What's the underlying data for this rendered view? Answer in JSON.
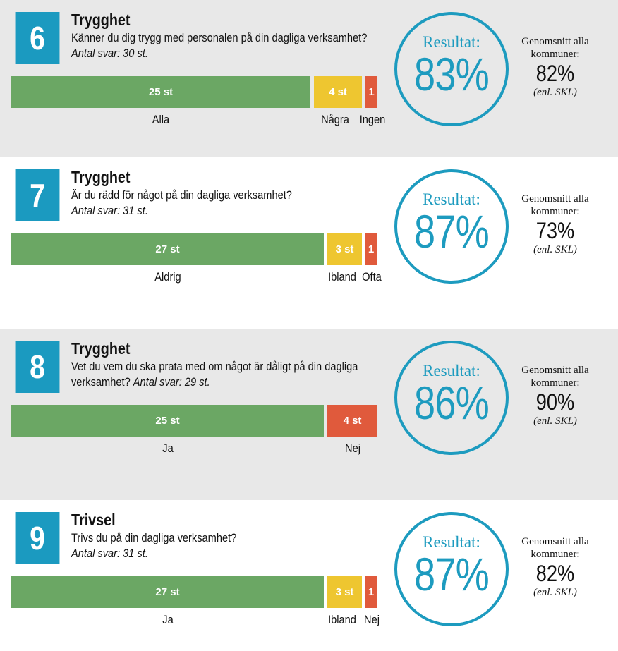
{
  "colors": {
    "panel_gray": "#e8e8e8",
    "panel_white": "#ffffff",
    "number_box": "#1b9ac0",
    "result_blue": "#1d9bbf",
    "green": "#6ba764",
    "yellow": "#eec630",
    "red": "#e05a3c"
  },
  "chart_data": [
    {
      "type": "bar",
      "number": "6",
      "title": "Trygghet",
      "question": "Känner du dig trygg med personalen på din dagliga verksamhet?",
      "count_text": "Antal svar: 30 st.",
      "categories": [
        "Alla",
        "Några",
        "Ingen"
      ],
      "values": [
        25,
        4,
        1
      ],
      "value_labels": [
        "25 st",
        "4 st",
        "1"
      ],
      "result_label": "Resultat:",
      "result": "83%",
      "avg_label": "Genomsnitt alla kommuner:",
      "avg_value": "82%",
      "avg_source": "(enl. SKL)"
    },
    {
      "type": "bar",
      "number": "7",
      "title": "Trygghet",
      "question": "Är du rädd för något på din dagliga verksamhet?",
      "count_text": "Antal svar: 31 st.",
      "categories": [
        "Aldrig",
        "Ibland",
        "Ofta"
      ],
      "values": [
        27,
        3,
        1
      ],
      "value_labels": [
        "27 st",
        "3 st",
        "1"
      ],
      "result_label": "Resultat:",
      "result": "87%",
      "avg_label": "Genomsnitt alla kommuner:",
      "avg_value": "73%",
      "avg_source": "(enl. SKL)"
    },
    {
      "type": "bar",
      "number": "8",
      "title": "Trygghet",
      "question": "Vet du vem du ska prata med om något är dåligt på din dagliga verksamhet?",
      "count_text": "Antal svar: 29 st.",
      "categories": [
        "Ja",
        "Nej"
      ],
      "values": [
        25,
        4
      ],
      "value_labels": [
        "25 st",
        "4 st"
      ],
      "result_label": "Resultat:",
      "result": "86%",
      "avg_label": "Genomsnitt alla kommuner:",
      "avg_value": "90%",
      "avg_source": "(enl. SKL)"
    },
    {
      "type": "bar",
      "number": "9",
      "title": "Trivsel",
      "question": "Trivs du på din dagliga verksamhet?",
      "count_text": "Antal svar: 31 st.",
      "categories": [
        "Ja",
        "Ibland",
        "Nej"
      ],
      "values": [
        27,
        3,
        1
      ],
      "value_labels": [
        "27 st",
        "3 st",
        "1"
      ],
      "result_label": "Resultat:",
      "result": "87%",
      "avg_label": "Genomsnitt alla kommuner:",
      "avg_value": "82%",
      "avg_source": "(enl. SKL)"
    }
  ]
}
